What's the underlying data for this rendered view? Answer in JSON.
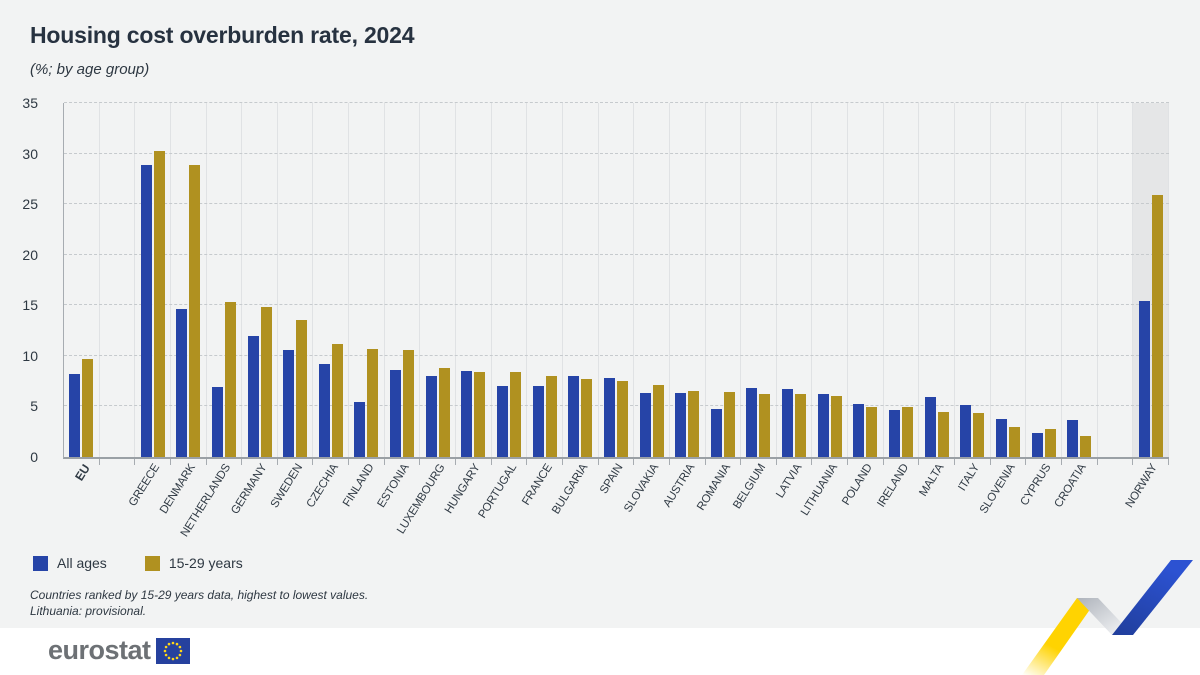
{
  "header": {
    "title": "Housing cost overburden rate, 2024",
    "subtitle": "(%; by age group)"
  },
  "chart_data": {
    "type": "bar",
    "title": "Housing cost overburden rate, 2024",
    "subtitle": "(%; by age group)",
    "categories": [
      "EU",
      "GREECE",
      "DENMARK",
      "NETHERLANDS",
      "GERMANY",
      "SWEDEN",
      "CZECHIA",
      "FINLAND",
      "ESTONIA",
      "LUXEMBOURG",
      "HUNGARY",
      "PORTUGAL",
      "FRANCE",
      "BULGARIA",
      "SPAIN",
      "SLOVAKIA",
      "AUSTRIA",
      "ROMANIA",
      "BELGIUM",
      "LATVIA",
      "LITHUANIA",
      "POLAND",
      "IRELAND",
      "MALTA",
      "ITALY",
      "SLOVENIA",
      "CYPRUS",
      "CROATIA",
      "NORWAY"
    ],
    "series": [
      {
        "name": "All ages",
        "color": "#2644A7",
        "values": [
          8.2,
          28.9,
          14.6,
          6.9,
          12.0,
          10.6,
          9.2,
          5.4,
          8.6,
          8.0,
          8.5,
          7.0,
          7.0,
          8.0,
          7.8,
          6.3,
          6.3,
          4.7,
          6.8,
          6.7,
          6.2,
          5.2,
          4.6,
          5.9,
          5.1,
          3.8,
          2.4,
          3.7,
          15.4
        ]
      },
      {
        "name": "15-29 years",
        "color": "#B09120",
        "values": [
          9.7,
          30.3,
          28.9,
          15.3,
          14.8,
          13.5,
          11.2,
          10.7,
          10.6,
          8.8,
          8.4,
          8.4,
          8.0,
          7.7,
          7.5,
          7.1,
          6.5,
          6.4,
          6.2,
          6.2,
          6.0,
          4.9,
          4.9,
          4.5,
          4.4,
          3.0,
          2.8,
          2.1,
          25.9
        ]
      }
    ],
    "ylim": [
      0,
      35
    ],
    "ytick_step": 5,
    "grid": "horizontal-dashed",
    "legend_position": "bottom-left",
    "highlighted_category": "NORWAY",
    "gap_after_categories": [
      "EU",
      "CROATIA"
    ],
    "bold_category": "EU"
  },
  "footnotes": {
    "line1": "Countries ranked by 15-29 years data, highest to lowest values.",
    "line2": "Lithuania: provisional."
  },
  "footer": {
    "logo_text": "eurostat"
  },
  "colors": {
    "background": "#f2f3f3",
    "footer_background": "#ffffff",
    "highlight_column": "#e5e6e7",
    "bar_blue": "#2644A7",
    "bar_gold": "#B09120",
    "eu_flag_blue": "#26419e",
    "eu_star_yellow": "#ffd617"
  }
}
